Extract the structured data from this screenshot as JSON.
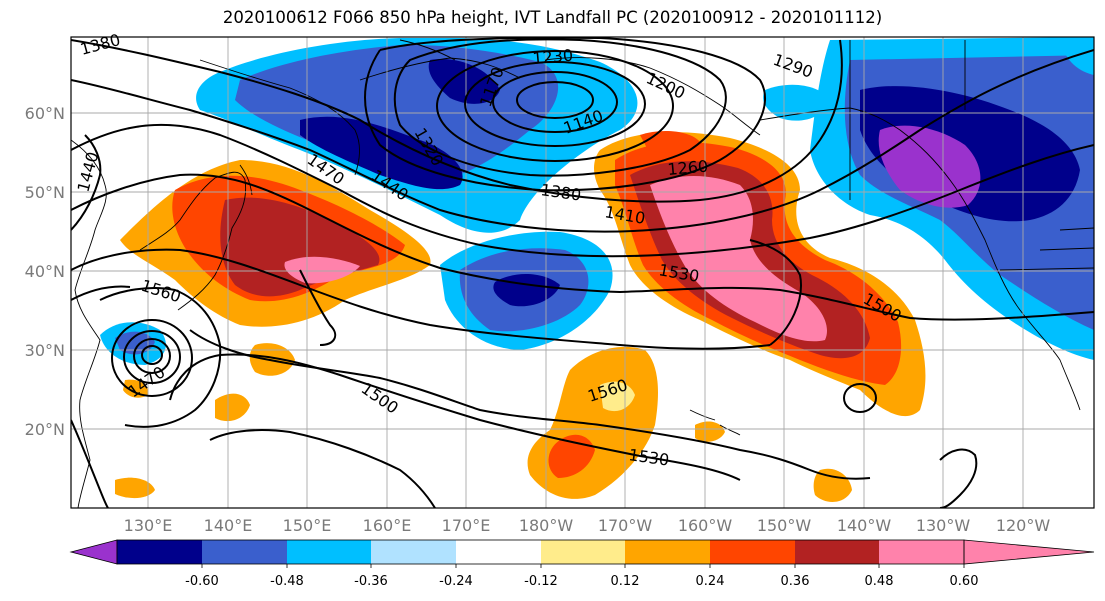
{
  "title": "2020100612 F066 850 hPa height, IVT Landfall PC (2020100912 - 2020101112)",
  "lat_labels": [
    "60°N",
    "50°N",
    "40°N",
    "30°N",
    "20°N"
  ],
  "lon_labels": [
    "130°E",
    "140°E",
    "150°E",
    "160°E",
    "170°E",
    "180°W",
    "170°W",
    "160°W",
    "150°W",
    "140°W",
    "130°W",
    "120°W"
  ],
  "colorbar": {
    "colors": [
      "#9a32cd",
      "#00008b",
      "#3a5fcd",
      "#00bfff",
      "#b0e2ff",
      "#ffffff",
      "#ffec8b",
      "#ffa500",
      "#ff4500",
      "#b22222",
      "#ff82ab"
    ],
    "tick_labels": [
      "-0.60",
      "-0.48",
      "-0.36",
      "-0.24",
      "-0.12",
      "0.12",
      "0.24",
      "0.36",
      "0.48",
      "0.60"
    ]
  },
  "contour_labels": [
    "1380",
    "1230",
    "1200",
    "1290",
    "1140",
    "1170",
    "1320",
    "1440",
    "1470",
    "1440",
    "1380",
    "1410",
    "1260",
    "1530",
    "1500",
    "1560",
    "1470",
    "1500",
    "1560",
    "1530"
  ]
}
